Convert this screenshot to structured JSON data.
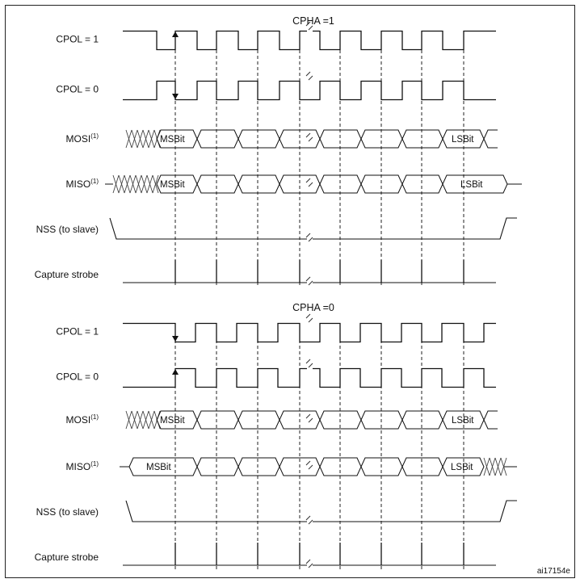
{
  "figure_id": "ai17154e",
  "panels": [
    {
      "title": "CPHA =1",
      "signals": [
        {
          "key": "cpol1",
          "label": "CPOL = 1"
        },
        {
          "key": "cpol0",
          "label": "CPOL = 0"
        },
        {
          "key": "mosi",
          "label": "MOSI",
          "footnote": "(1)",
          "first_bit": "MSBit",
          "last_bit": "LSBit"
        },
        {
          "key": "miso",
          "label": "MISO",
          "footnote": "(1)",
          "first_bit": "MSBit",
          "last_bit": "LSBit"
        },
        {
          "key": "nss",
          "label": "NSS (to slave)"
        },
        {
          "key": "strobe",
          "label": "Capture strobe"
        }
      ]
    },
    {
      "title": "CPHA =0",
      "signals": [
        {
          "key": "cpol1",
          "label": "CPOL = 1"
        },
        {
          "key": "cpol0",
          "label": "CPOL = 0"
        },
        {
          "key": "mosi",
          "label": "MOSI",
          "footnote": "(1)",
          "first_bit": "MSBit",
          "last_bit": "LSBit"
        },
        {
          "key": "miso",
          "label": "MISO",
          "footnote": "(1)",
          "first_bit": "MSBit",
          "last_bit": "LSBit"
        },
        {
          "key": "nss",
          "label": "NSS (to slave)"
        },
        {
          "key": "strobe",
          "label": "Capture strobe"
        }
      ]
    }
  ]
}
